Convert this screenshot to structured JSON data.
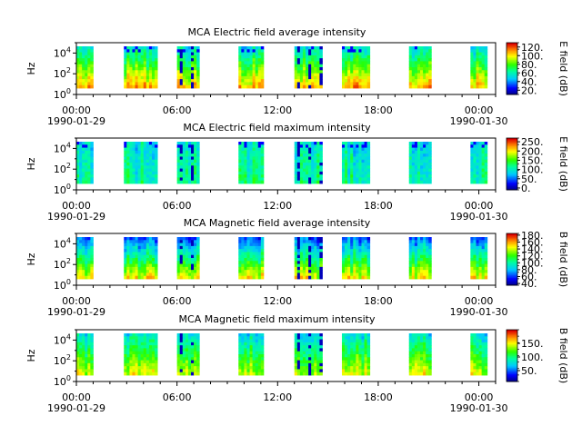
{
  "figure": {
    "x_tick_labels": [
      "00:00",
      "06:00",
      "12:00",
      "18:00",
      "00:00"
    ],
    "x_date_labels": [
      "1990-01-29",
      "1990-01-30"
    ]
  },
  "chart_data": [
    {
      "type": "heatmap",
      "title": "MCA  Electric field average intensity",
      "ylabel": "Hz",
      "y_tick_labels": [
        "10^0",
        "10^2",
        "10^4"
      ],
      "colorbar_label": "E field (dB)",
      "colorbar_ticks": [
        "20.",
        "40.",
        "60.",
        "80.",
        "100.",
        "120."
      ],
      "colorbar_range": [
        10,
        130
      ],
      "x_range": [
        "1990-01-29 00:00",
        "1990-01-30 01:00"
      ],
      "ylim": [
        1,
        100000
      ],
      "data_segments": [
        [
          "00:00",
          "01:00"
        ],
        [
          "02:50",
          "04:50"
        ],
        [
          "06:00",
          "07:20"
        ],
        [
          "09:40",
          "11:10"
        ],
        [
          "13:00",
          "14:40"
        ],
        [
          "15:50",
          "17:30"
        ],
        [
          "19:50",
          "21:10"
        ],
        [
          "23:30",
          "24:30"
        ]
      ]
    },
    {
      "type": "heatmap",
      "title": "MCA  Electric field maximum intensity",
      "ylabel": "Hz",
      "y_tick_labels": [
        "10^0",
        "10^2",
        "10^4"
      ],
      "colorbar_label": "E field (dB)",
      "colorbar_ticks": [
        "0.",
        "50.",
        "100.",
        "150.",
        "200.",
        "250."
      ],
      "colorbar_range": [
        -10,
        270
      ],
      "x_range": [
        "1990-01-29 00:00",
        "1990-01-30 01:00"
      ],
      "ylim": [
        1,
        100000
      ],
      "data_segments": [
        [
          "00:00",
          "01:00"
        ],
        [
          "02:50",
          "04:50"
        ],
        [
          "06:00",
          "07:20"
        ],
        [
          "09:40",
          "11:10"
        ],
        [
          "13:00",
          "14:40"
        ],
        [
          "15:50",
          "17:30"
        ],
        [
          "19:50",
          "21:10"
        ],
        [
          "23:30",
          "24:30"
        ]
      ]
    },
    {
      "type": "heatmap",
      "title": "MCA  Magnetic field average intensity",
      "ylabel": "Hz",
      "y_tick_labels": [
        "10^0",
        "10^2",
        "10^4"
      ],
      "colorbar_label": "B field (dB)",
      "colorbar_ticks": [
        "40.",
        "60.",
        "80.",
        "100.",
        "120.",
        "140.",
        "160.",
        "180."
      ],
      "colorbar_range": [
        35,
        185
      ],
      "x_range": [
        "1990-01-29 00:00",
        "1990-01-30 01:00"
      ],
      "ylim": [
        1,
        100000
      ],
      "data_segments": [
        [
          "00:00",
          "01:00"
        ],
        [
          "02:50",
          "04:50"
        ],
        [
          "06:00",
          "07:20"
        ],
        [
          "09:40",
          "11:10"
        ],
        [
          "13:00",
          "14:40"
        ],
        [
          "15:50",
          "17:30"
        ],
        [
          "19:50",
          "21:10"
        ],
        [
          "23:30",
          "24:30"
        ]
      ]
    },
    {
      "type": "heatmap",
      "title": "MCA  Magnetic field maximum intensity",
      "ylabel": "Hz",
      "y_tick_labels": [
        "10^0",
        "10^2",
        "10^4"
      ],
      "colorbar_label": "B field (dB)",
      "colorbar_ticks": [
        "50.",
        "100.",
        "150."
      ],
      "colorbar_range": [
        10,
        200
      ],
      "x_range": [
        "1990-01-29 00:00",
        "1990-01-30 01:00"
      ],
      "ylim": [
        1,
        100000
      ],
      "data_segments": [
        [
          "00:00",
          "01:00"
        ],
        [
          "02:50",
          "04:50"
        ],
        [
          "06:00",
          "07:20"
        ],
        [
          "09:40",
          "11:10"
        ],
        [
          "13:00",
          "14:40"
        ],
        [
          "15:50",
          "17:30"
        ],
        [
          "19:50",
          "21:10"
        ],
        [
          "23:30",
          "24:30"
        ]
      ]
    }
  ]
}
